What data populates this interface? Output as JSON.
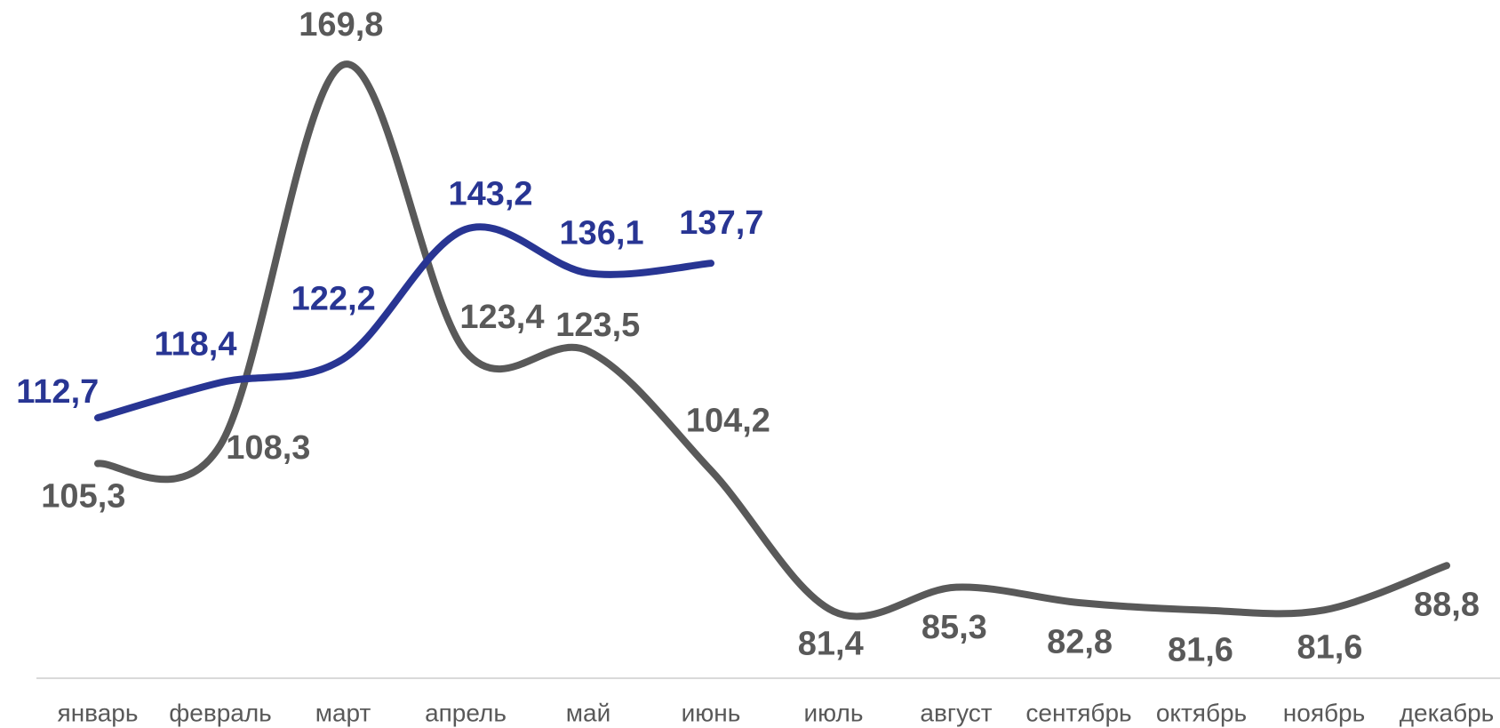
{
  "chart_data": {
    "type": "line",
    "categories": [
      "январь",
      "февраль",
      "март",
      "апрель",
      "май",
      "июнь",
      "июль",
      "август",
      "сентябрь",
      "октябрь",
      "ноябрь",
      "декабрь"
    ],
    "series": [
      {
        "color": "#595959",
        "values": [
          105.3,
          108.3,
          169.8,
          123.4,
          123.5,
          104.2,
          81.4,
          85.3,
          82.8,
          81.6,
          81.6,
          88.8
        ],
        "value_labels": [
          "105,3",
          "108,3",
          "169,8",
          "123,4",
          "123,5",
          "104,2",
          "81,4",
          "85,3",
          "82,8",
          "81,6",
          "81,6",
          "88,8"
        ]
      },
      {
        "color": "#283593",
        "values": [
          112.7,
          118.4,
          122.2,
          143.2,
          136.1,
          137.7,
          null,
          null,
          null,
          null,
          null,
          null
        ],
        "value_labels": [
          "112,7",
          "118,4",
          "122,2",
          "143,2",
          "136,1",
          "137,7",
          null,
          null,
          null,
          null,
          null,
          null
        ]
      }
    ],
    "ylim": [
      70,
      180
    ],
    "smooth": true
  }
}
